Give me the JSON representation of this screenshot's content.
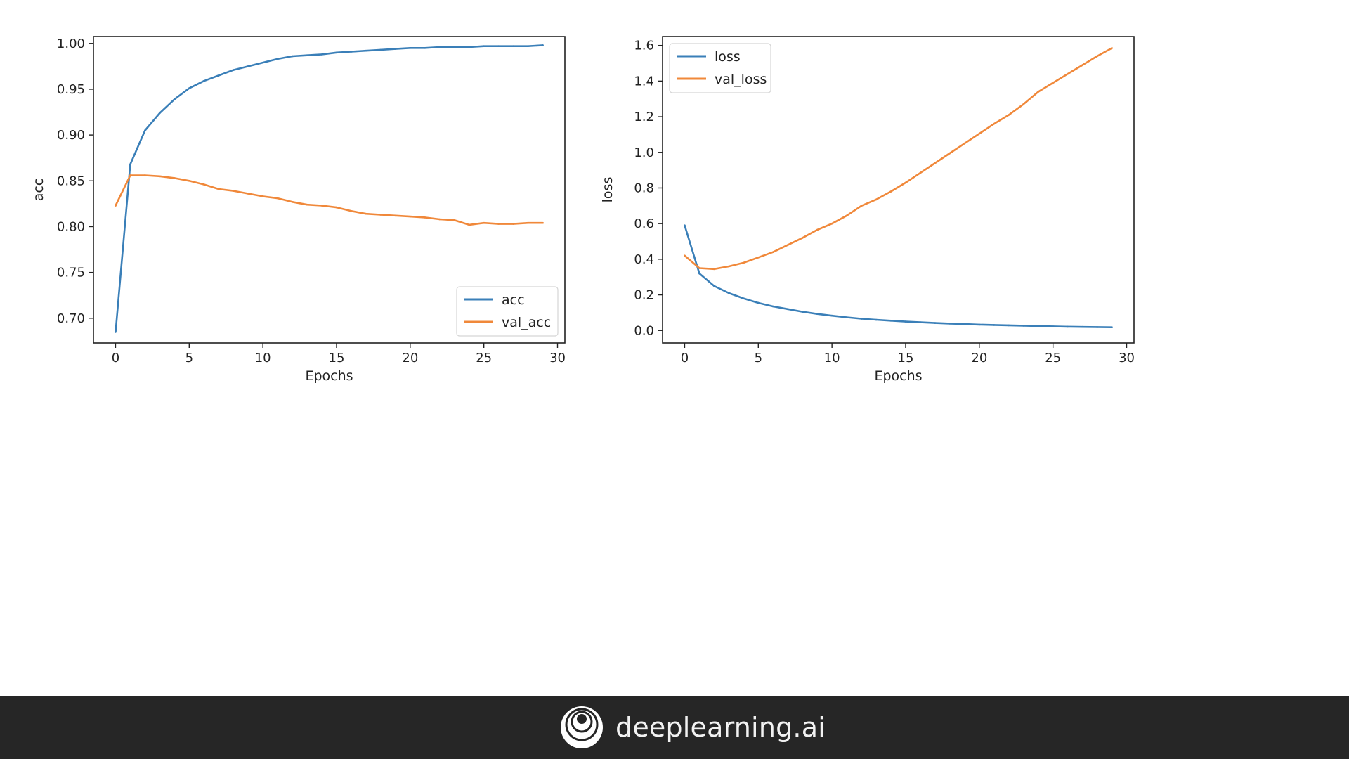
{
  "chart_data": [
    {
      "type": "line",
      "title": "",
      "xlabel": "Epochs",
      "ylabel": "acc",
      "xlim": [
        -1.5,
        30.5
      ],
      "ylim": [
        0.673,
        1.0075
      ],
      "xticks": [
        0,
        5,
        10,
        15,
        20,
        25,
        30
      ],
      "yticks": [
        0.7,
        0.75,
        0.8,
        0.85,
        0.9,
        0.95,
        1.0
      ],
      "ytick_decimals": 2,
      "grid": false,
      "legend_position": "bottom-right",
      "x": [
        0,
        1,
        2,
        3,
        4,
        5,
        6,
        7,
        8,
        9,
        10,
        11,
        12,
        13,
        14,
        15,
        16,
        17,
        18,
        19,
        20,
        21,
        22,
        23,
        24,
        25,
        26,
        27,
        28,
        29
      ],
      "series": [
        {
          "name": "acc",
          "color": "#3a7fb8",
          "values": [
            0.685,
            0.868,
            0.905,
            0.924,
            0.939,
            0.951,
            0.959,
            0.965,
            0.971,
            0.975,
            0.979,
            0.983,
            0.986,
            0.987,
            0.988,
            0.99,
            0.991,
            0.992,
            0.993,
            0.994,
            0.995,
            0.995,
            0.996,
            0.996,
            0.996,
            0.997,
            0.997,
            0.997,
            0.997,
            0.998
          ]
        },
        {
          "name": "val_acc",
          "color": "#f0883a",
          "values": [
            0.823,
            0.856,
            0.856,
            0.855,
            0.853,
            0.85,
            0.846,
            0.841,
            0.839,
            0.836,
            0.833,
            0.831,
            0.827,
            0.824,
            0.823,
            0.821,
            0.817,
            0.814,
            0.813,
            0.812,
            0.811,
            0.81,
            0.808,
            0.807,
            0.802,
            0.804,
            0.803,
            0.803,
            0.804,
            0.804
          ]
        }
      ]
    },
    {
      "type": "line",
      "title": "",
      "xlabel": "Epochs",
      "ylabel": "loss",
      "xlim": [
        -1.5,
        30.5
      ],
      "ylim": [
        -0.07,
        1.65
      ],
      "xticks": [
        0,
        5,
        10,
        15,
        20,
        25,
        30
      ],
      "yticks": [
        0.0,
        0.2,
        0.4,
        0.6,
        0.8,
        1.0,
        1.2,
        1.4,
        1.6
      ],
      "ytick_decimals": 1,
      "grid": false,
      "legend_position": "top-left",
      "x": [
        0,
        1,
        2,
        3,
        4,
        5,
        6,
        7,
        8,
        9,
        10,
        11,
        12,
        13,
        14,
        15,
        16,
        17,
        18,
        19,
        20,
        21,
        22,
        23,
        24,
        25,
        26,
        27,
        28,
        29
      ],
      "series": [
        {
          "name": "loss",
          "color": "#3a7fb8",
          "values": [
            0.59,
            0.32,
            0.25,
            0.21,
            0.18,
            0.155,
            0.135,
            0.12,
            0.105,
            0.093,
            0.083,
            0.074,
            0.066,
            0.06,
            0.055,
            0.05,
            0.046,
            0.042,
            0.039,
            0.036,
            0.033,
            0.031,
            0.029,
            0.027,
            0.025,
            0.023,
            0.021,
            0.02,
            0.019,
            0.018
          ]
        },
        {
          "name": "val_loss",
          "color": "#f0883a",
          "values": [
            0.42,
            0.35,
            0.345,
            0.36,
            0.38,
            0.41,
            0.44,
            0.48,
            0.52,
            0.565,
            0.6,
            0.645,
            0.7,
            0.735,
            0.78,
            0.83,
            0.885,
            0.94,
            0.995,
            1.05,
            1.105,
            1.16,
            1.21,
            1.27,
            1.34,
            1.39,
            1.44,
            1.49,
            1.54,
            1.585
          ]
        }
      ]
    }
  ],
  "footer": {
    "brand_name": "deeplearning.ai",
    "logo_icon": "deeplearning-ai-logo-icon"
  }
}
